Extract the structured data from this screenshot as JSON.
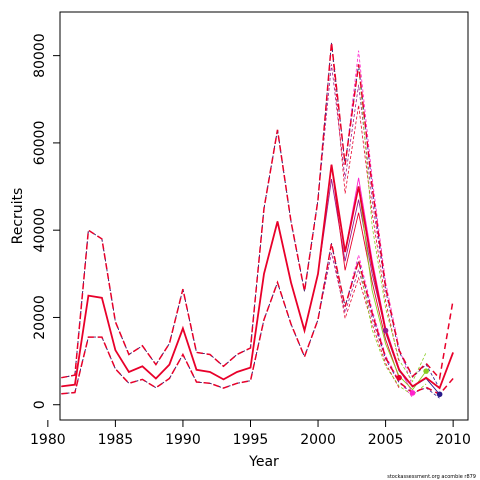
{
  "chart_data": {
    "type": "line",
    "title": "",
    "xlabel": "Year",
    "ylabel": "Recruits",
    "xlim": [
      1980.9,
      2011.1
    ],
    "ylim": [
      -3500,
      90000
    ],
    "xticks": [
      1980,
      1985,
      1990,
      1995,
      2000,
      2005,
      2010
    ],
    "yticks": [
      0,
      20000,
      40000,
      60000,
      80000
    ],
    "grid": false,
    "legend": "none",
    "credit": "stockassessment.org acombie r879",
    "x": [
      1981,
      1982,
      1983,
      1984,
      1985,
      1986,
      1987,
      1988,
      1989,
      1990,
      1991,
      1992,
      1993,
      1994,
      1995,
      1996,
      1997,
      1998,
      1999,
      2000,
      2001,
      2002,
      2003,
      2004,
      2005,
      2006,
      2007,
      2008,
      2009,
      2010
    ],
    "estimate": [
      4200,
      4600,
      25000,
      24500,
      12500,
      7500,
      8800,
      6000,
      9200,
      17500,
      8000,
      7500,
      5800,
      7500,
      8500,
      30000,
      42000,
      28000,
      17000,
      30000,
      55000,
      35000,
      50000,
      32000,
      17000,
      8000,
      4200,
      6200,
      3800,
      12000
    ],
    "upper": [
      6200,
      6800,
      40000,
      38000,
      19000,
      11500,
      13500,
      9200,
      14000,
      26500,
      12000,
      11500,
      8800,
      11500,
      13000,
      45000,
      63000,
      42000,
      26000,
      47000,
      83000,
      55000,
      78000,
      50000,
      27000,
      12500,
      6500,
      9500,
      6000,
      24000
    ],
    "lower": [
      2500,
      2800,
      15500,
      15500,
      8200,
      4900,
      5800,
      3900,
      6000,
      11500,
      5200,
      4900,
      3800,
      4900,
      5500,
      19500,
      28000,
      18500,
      11000,
      19500,
      37000,
      22500,
      33000,
      21000,
      10800,
      5200,
      2700,
      4000,
      2400,
      6000
    ],
    "retro_terminal_points": [
      {
        "year": 2005,
        "value": 17000,
        "color": "#9b1b8c"
      },
      {
        "year": 2006,
        "value": 6200,
        "color": "#e8002a"
      },
      {
        "year": 2007,
        "value": 2700,
        "color": "#ff22cc"
      },
      {
        "year": 2008,
        "value": 7700,
        "color": "#88cc22"
      },
      {
        "year": 2009,
        "value": 2400,
        "color": "#2a1a8a"
      }
    ],
    "colors": {
      "main": "#e8002a",
      "retro": [
        "#9b1b8c",
        "#ff22cc",
        "#88cc22",
        "#2a1a8a",
        "#b33a3a"
      ]
    }
  }
}
